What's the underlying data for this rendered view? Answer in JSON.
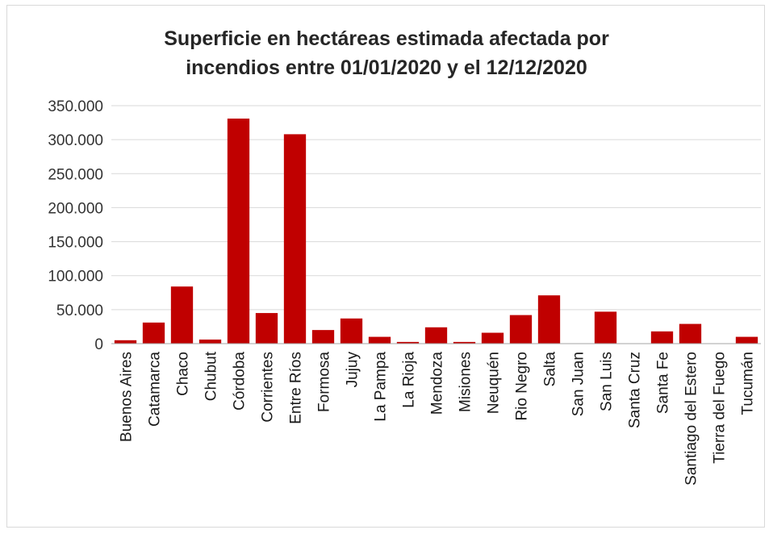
{
  "chart_data": {
    "type": "bar",
    "title_lines": [
      "Superficie en hectáreas estimada afectada por",
      "incendios entre 01/01/2020 y el 12/12/2020"
    ],
    "categories": [
      "Buenos Aires",
      "Catamarca",
      "Chaco",
      "Chubut",
      "Córdoba",
      "Corrientes",
      "Entre Ríos",
      "Formosa",
      "Jujuy",
      "La Pampa",
      "La Rioja",
      "Mendoza",
      "Misiones",
      "Neuquén",
      "Rio Negro",
      "Salta",
      "San Juan",
      "San Luis",
      "Santa Cruz",
      "Santa Fe",
      "Santiago del Estero",
      "Tierra del Fuego",
      "Tucumán"
    ],
    "values": [
      5000,
      31000,
      84000,
      6000,
      331000,
      45000,
      308000,
      20000,
      37000,
      10000,
      2500,
      24000,
      2500,
      16000,
      42000,
      71000,
      0,
      47000,
      0,
      18000,
      29000,
      0,
      10000
    ],
    "ylim": [
      0,
      350000
    ],
    "y_ticks": [
      0,
      50000,
      100000,
      150000,
      200000,
      250000,
      300000,
      350000
    ],
    "y_tick_labels": [
      "0",
      "50.000",
      "100.000",
      "150.000",
      "200.000",
      "250.000",
      "300.000",
      "350.000"
    ],
    "bar_color": "#c00000",
    "grid": true,
    "xlabel": "",
    "ylabel": ""
  }
}
